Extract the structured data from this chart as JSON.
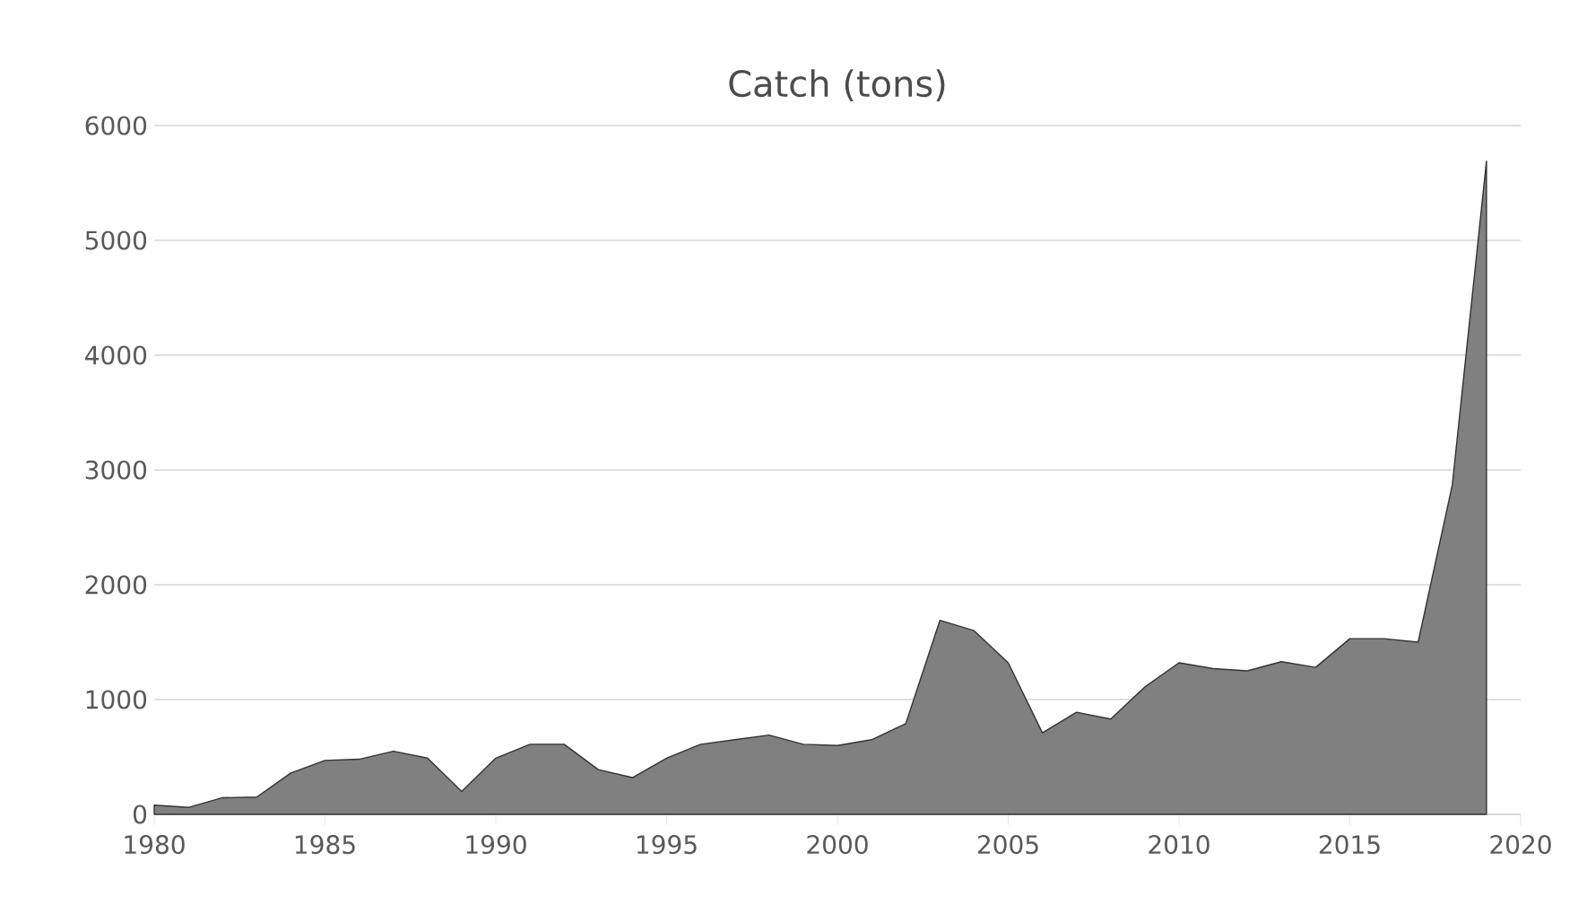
{
  "chart_data": {
    "type": "area",
    "title": "Catch (tons)",
    "x": [
      1980,
      1981,
      1982,
      1983,
      1984,
      1985,
      1986,
      1987,
      1988,
      1989,
      1990,
      1991,
      1992,
      1993,
      1994,
      1995,
      1996,
      1997,
      1998,
      1999,
      2000,
      2001,
      2002,
      2003,
      2004,
      2005,
      2006,
      2007,
      2008,
      2009,
      2010,
      2011,
      2012,
      2013,
      2014,
      2015,
      2016,
      2017,
      2018,
      2019
    ],
    "values": [
      80,
      60,
      145,
      150,
      360,
      470,
      480,
      550,
      490,
      200,
      490,
      610,
      610,
      390,
      320,
      490,
      610,
      650,
      690,
      610,
      600,
      650,
      790,
      1690,
      1600,
      1320,
      710,
      890,
      830,
      1110,
      1320,
      1270,
      1250,
      1330,
      1280,
      1530,
      1530,
      1500,
      2870,
      5690
    ],
    "color": "#808080",
    "xlim": [
      1980,
      2020
    ],
    "xticks": [
      1980,
      1985,
      1990,
      1995,
      2000,
      2005,
      2010,
      2015,
      2020
    ],
    "ylim": [
      0,
      6000
    ],
    "yticks": [
      0,
      1000,
      2000,
      3000,
      4000,
      5000,
      6000
    ],
    "grid": "y"
  }
}
